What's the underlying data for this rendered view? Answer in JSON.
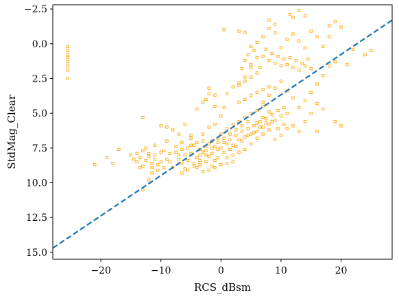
{
  "chart_data": {
    "type": "scatter",
    "xlabel": "RCS_dBsm",
    "ylabel": "StdMag_Clear",
    "xlim": [
      -28,
      28.5
    ],
    "ylim": [
      15.5,
      -2.8
    ],
    "y_inverted": true,
    "grid": false,
    "x_ticks": [
      {
        "value": -20,
        "label": "−20"
      },
      {
        "value": -10,
        "label": "−10"
      },
      {
        "value": 0,
        "label": "0"
      },
      {
        "value": 10,
        "label": "10"
      },
      {
        "value": 20,
        "label": "20"
      }
    ],
    "y_ticks": [
      {
        "value": -2.5,
        "label": "−2.5"
      },
      {
        "value": 0.0,
        "label": "0.0"
      },
      {
        "value": 2.5,
        "label": "2.5"
      },
      {
        "value": 5.0,
        "label": "5.0"
      },
      {
        "value": 7.5,
        "label": "7.5"
      },
      {
        "value": 10.0,
        "label": "10.0"
      },
      {
        "value": 12.5,
        "label": "12.5"
      },
      {
        "value": 15.0,
        "label": "15.0"
      }
    ],
    "series": [
      {
        "kind": "scatter",
        "marker": "square-open",
        "color": "#ffa500",
        "points": [
          [
            -25.5,
            0.2
          ],
          [
            -25.5,
            0.5
          ],
          [
            -25.5,
            0.8
          ],
          [
            -25.5,
            1.0
          ],
          [
            -25.5,
            1.3
          ],
          [
            -25.5,
            1.6
          ],
          [
            -25.5,
            1.9
          ],
          [
            -25.5,
            2.5
          ],
          [
            -21,
            8.7
          ],
          [
            -19,
            8.2
          ],
          [
            -18,
            8.6
          ],
          [
            -17,
            7.6
          ],
          [
            -15,
            8.0
          ],
          [
            -14.5,
            8.3
          ],
          [
            -14,
            8.5
          ],
          [
            -13.5,
            8.2
          ],
          [
            -13,
            8.8
          ],
          [
            -12.5,
            8.4
          ],
          [
            -12,
            8.1
          ],
          [
            -11.5,
            8.6
          ],
          [
            -11,
            8.3
          ],
          [
            -10.5,
            8.7
          ],
          [
            -10,
            8.5
          ],
          [
            -13,
            10.5
          ],
          [
            -12,
            9.8
          ],
          [
            -11.5,
            9.3
          ],
          [
            -13,
            7.7
          ],
          [
            -12,
            7.9
          ],
          [
            -11,
            8.0
          ],
          [
            -10,
            7.8
          ],
          [
            -9,
            8.3
          ],
          [
            -8,
            8.9
          ],
          [
            -7.5,
            7.4
          ],
          [
            -7,
            8.3
          ],
          [
            -6.5,
            8.6
          ],
          [
            -6,
            8.0
          ],
          [
            -5.5,
            8.4
          ],
          [
            -5,
            7.9
          ],
          [
            -4.5,
            8.6
          ],
          [
            -4,
            8.2
          ],
          [
            -3.5,
            8.0
          ],
          [
            -3,
            7.8
          ],
          [
            -2.5,
            8.5
          ],
          [
            -2,
            8.1
          ],
          [
            -1.5,
            7.9
          ],
          [
            -1,
            8.4
          ],
          [
            -0.5,
            7.6
          ],
          [
            -6,
            9.0
          ],
          [
            -4,
            8.9
          ],
          [
            -3,
            9.2
          ],
          [
            -2,
            9.1
          ],
          [
            -5,
            7.3
          ],
          [
            -4,
            7.1
          ],
          [
            -3,
            7.0
          ],
          [
            -2,
            7.2
          ],
          [
            -1,
            7.4
          ],
          [
            -9,
            7.0
          ],
          [
            -7,
            6.5
          ],
          [
            -5,
            6.8
          ],
          [
            -3,
            6.5
          ],
          [
            -13,
            5.3
          ],
          [
            -10,
            5.9
          ],
          [
            -9,
            6.0
          ],
          [
            -8,
            6.2
          ],
          [
            -6,
            5.8
          ],
          [
            -5,
            6.6
          ],
          [
            -3,
            4.2
          ],
          [
            -2.5,
            4.0
          ],
          [
            -2,
            3.6
          ],
          [
            -4,
            4.7
          ],
          [
            -1,
            3.7
          ],
          [
            -7,
            8.0
          ],
          [
            -6.5,
            7.6
          ],
          [
            -3.5,
            8.7
          ],
          [
            -2.5,
            7.7
          ],
          [
            -1.5,
            8.8
          ],
          [
            -0.5,
            8.2
          ],
          [
            0,
            7.5
          ],
          [
            0.5,
            7.8
          ],
          [
            1,
            7.2
          ],
          [
            1.5,
            6.9
          ],
          [
            2,
            7.3
          ],
          [
            2.5,
            6.6
          ],
          [
            3,
            6.9
          ],
          [
            3.5,
            6.3
          ],
          [
            4,
            6.7
          ],
          [
            4.5,
            6.1
          ],
          [
            5,
            6.5
          ],
          [
            5.5,
            5.9
          ],
          [
            6,
            6.3
          ],
          [
            6.5,
            5.6
          ],
          [
            7,
            6.0
          ],
          [
            7.5,
            5.4
          ],
          [
            8,
            5.8
          ],
          [
            8.5,
            5.1
          ],
          [
            9,
            5.5
          ],
          [
            9.5,
            4.8
          ],
          [
            10,
            5.2
          ],
          [
            10.5,
            4.6
          ],
          [
            11,
            5.0
          ],
          [
            1,
            8.2
          ],
          [
            2,
            8.0
          ],
          [
            3,
            7.8
          ],
          [
            4,
            7.6
          ],
          [
            5,
            7.2
          ],
          [
            6,
            6.8
          ],
          [
            7,
            6.5
          ],
          [
            8,
            6.2
          ],
          [
            0,
            6.5
          ],
          [
            1,
            6.1
          ],
          [
            2,
            5.8
          ],
          [
            3,
            5.6
          ],
          [
            4,
            5.3
          ],
          [
            5,
            5.0
          ],
          [
            6,
            4.8
          ],
          [
            7,
            4.5
          ],
          [
            0,
            5.2
          ],
          [
            -1,
            5.8
          ],
          [
            -2,
            6.0
          ],
          [
            0.5,
            4.6
          ],
          [
            3,
            4.2
          ],
          [
            4,
            4.0
          ],
          [
            5,
            3.7
          ],
          [
            6,
            3.5
          ],
          [
            7,
            3.3
          ],
          [
            8,
            3.1
          ],
          [
            3,
            3.0
          ],
          [
            4,
            2.7
          ],
          [
            5,
            2.4
          ],
          [
            3.5,
            1.8
          ],
          [
            4,
            1.2
          ],
          [
            4.5,
            0.8
          ],
          [
            5,
            1.5
          ],
          [
            5.5,
            0.5
          ],
          [
            6,
            1.0
          ],
          [
            6.5,
            1.7
          ],
          [
            7,
            0.9
          ],
          [
            7.5,
            0.4
          ],
          [
            8,
            1.2
          ],
          [
            8.5,
            0.7
          ],
          [
            9,
            1.4
          ],
          [
            9.5,
            0.9
          ],
          [
            10,
            1.6
          ],
          [
            10.5,
            1.1
          ],
          [
            11,
            1.5
          ],
          [
            11.5,
            1.0
          ],
          [
            12,
            1.7
          ],
          [
            12.5,
            1.2
          ],
          [
            13,
            1.9
          ],
          [
            13.5,
            1.4
          ],
          [
            14,
            1.6
          ],
          [
            14.5,
            1.1
          ],
          [
            15,
            1.8
          ],
          [
            10,
            0.3
          ],
          [
            11,
            -0.3
          ],
          [
            12,
            -0.7
          ],
          [
            13,
            -0.2
          ],
          [
            14,
            0.3
          ],
          [
            9,
            -0.8
          ],
          [
            8,
            -1.1
          ],
          [
            7,
            -0.5
          ],
          [
            6,
            -0.1
          ],
          [
            5,
            0.2
          ],
          [
            4,
            -0.8
          ],
          [
            0.5,
            -1.0
          ],
          [
            3,
            -0.9
          ],
          [
            12,
            -1.9
          ],
          [
            13,
            -2.4
          ],
          [
            14,
            -2.0
          ],
          [
            11.5,
            -2.1
          ],
          [
            8,
            -1.7
          ],
          [
            9,
            -1.4
          ],
          [
            15,
            -0.9
          ],
          [
            16,
            -0.5
          ],
          [
            17,
            0.2
          ],
          [
            18,
            -0.5
          ],
          [
            18,
            -1.3
          ],
          [
            19,
            -1.6
          ],
          [
            20,
            -1.2
          ],
          [
            24,
            0.8
          ],
          [
            25,
            0.5
          ],
          [
            22,
            0.4
          ],
          [
            21,
            1.5
          ],
          [
            19,
            1.3
          ],
          [
            18,
            1.6
          ],
          [
            17,
            2.3
          ],
          [
            16,
            2.9
          ],
          [
            15,
            3.5
          ],
          [
            14,
            4.1
          ],
          [
            13,
            4.6
          ],
          [
            12,
            3.9
          ],
          [
            11,
            3.4
          ],
          [
            10,
            2.7
          ],
          [
            9,
            3.2
          ],
          [
            8,
            3.7
          ],
          [
            7,
            4.2
          ],
          [
            6,
            2.1
          ],
          [
            5,
            1.7
          ],
          [
            4,
            2.4
          ],
          [
            3,
            2.8
          ],
          [
            2,
            3.1
          ],
          [
            1,
            3.6
          ],
          [
            -1,
            4.5
          ],
          [
            -2,
            3.2
          ],
          [
            15,
            5.0
          ],
          [
            16,
            4.3
          ],
          [
            14,
            5.6
          ],
          [
            13,
            6.3
          ],
          [
            12,
            5.9
          ],
          [
            11,
            6.1
          ],
          [
            10,
            6.6
          ],
          [
            9,
            6.9
          ],
          [
            17,
            4.7
          ],
          [
            19,
            5.6
          ],
          [
            20,
            5.9
          ],
          [
            16,
            6.3
          ],
          [
            8,
            4.9
          ],
          [
            7,
            5.3
          ],
          [
            6,
            5.7
          ],
          [
            4.5,
            5.6
          ],
          [
            3.5,
            5.9
          ],
          [
            2.5,
            6.2
          ],
          [
            1.5,
            6.5
          ],
          [
            0.5,
            6.8
          ],
          [
            -0.5,
            7.1
          ],
          [
            -1.5,
            7.5
          ],
          [
            -2.5,
            8.0
          ],
          [
            -3.5,
            8.4
          ],
          [
            -4.5,
            8.8
          ],
          [
            -5.5,
            9.1
          ],
          [
            -6.5,
            9.3
          ],
          [
            -8.5,
            8.5
          ],
          [
            -9.5,
            8.9
          ],
          [
            -10.5,
            9.1
          ],
          [
            -11.5,
            8.9
          ],
          [
            -13.5,
            8.9
          ],
          [
            -14,
            7.9
          ],
          [
            -12.5,
            7.5
          ],
          [
            -11,
            7.3
          ],
          [
            -9.5,
            7.7
          ],
          [
            -8.5,
            7.9
          ],
          [
            -7.5,
            7.8
          ],
          [
            -6.5,
            7.1
          ],
          [
            -5.5,
            7.5
          ],
          [
            -4.5,
            7.3
          ],
          [
            -3.5,
            7.6
          ],
          [
            -2.5,
            7.4
          ],
          [
            -1.5,
            7.0
          ],
          [
            -0.5,
            6.8
          ],
          [
            0.5,
            7.1
          ],
          [
            1.5,
            7.6
          ],
          [
            2.5,
            7.4
          ],
          [
            3.5,
            7.0
          ],
          [
            4.5,
            6.6
          ],
          [
            5.5,
            6.4
          ],
          [
            6.5,
            6.0
          ],
          [
            7.5,
            5.7
          ],
          [
            8.5,
            5.6
          ],
          [
            9.5,
            6.1
          ],
          [
            10.5,
            5.8
          ],
          [
            1,
            8.6
          ],
          [
            2,
            8.5
          ],
          [
            -1,
            8.9
          ],
          [
            0,
            8.7
          ]
        ]
      },
      {
        "kind": "line",
        "style": "dashed",
        "color": "#1f77b4",
        "points": [
          [
            -28,
            14.7
          ],
          [
            28.5,
            -1.7
          ]
        ]
      }
    ]
  }
}
